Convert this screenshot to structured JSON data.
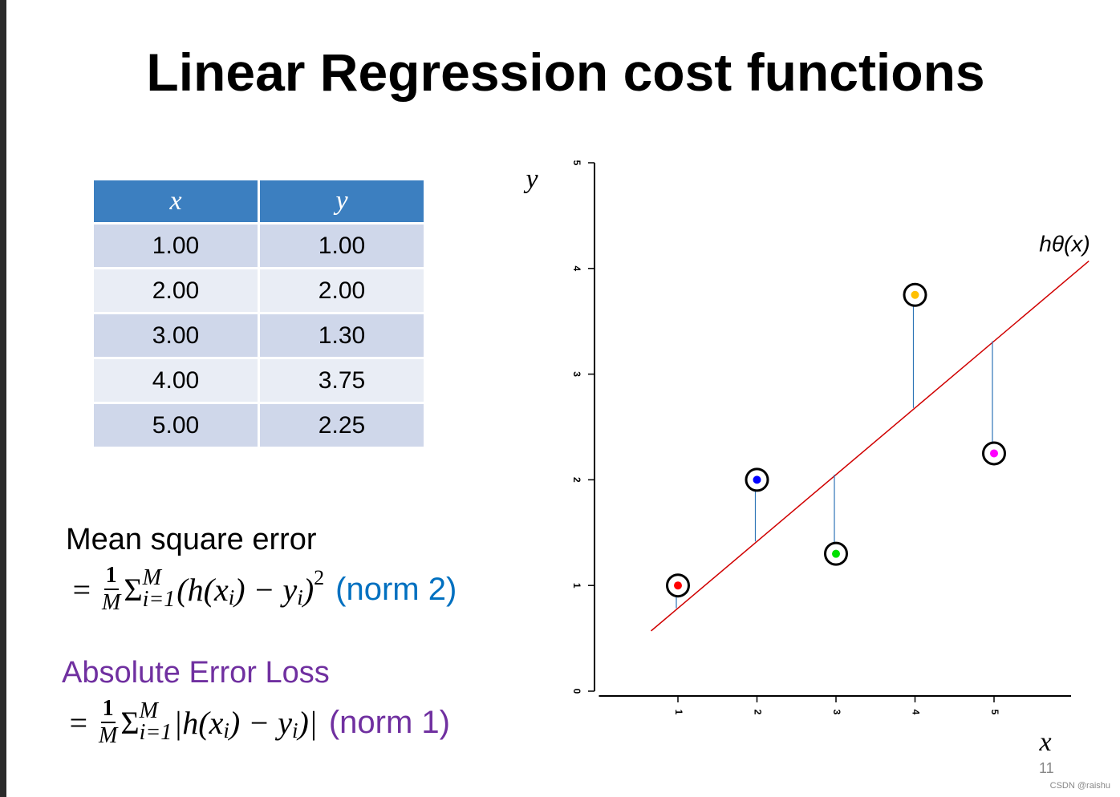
{
  "title": "Linear Regression cost functions",
  "table": {
    "header": [
      "x",
      "y"
    ],
    "rows": [
      [
        "1.00",
        "1.00"
      ],
      [
        "2.00",
        "2.00"
      ],
      [
        "3.00",
        "1.30"
      ],
      [
        "4.00",
        "3.75"
      ],
      [
        "5.00",
        "2.25"
      ]
    ]
  },
  "mse": {
    "heading": "Mean square error",
    "formula": {
      "equals": "=",
      "numerator": "1",
      "denominator": "M",
      "sum": "Σ",
      "upper": "M",
      "lower": "i=1",
      "body": [
        "(h(x",
        "i",
        ") − y",
        "i",
        ")"
      ],
      "power": "2",
      "note": "(norm 2)"
    }
  },
  "mae": {
    "heading": "Absolute Error Loss",
    "formula": {
      "equals": "=",
      "numerator": "1",
      "denominator": "M",
      "sum": "Σ",
      "upper": "M",
      "lower": "i=1",
      "body": [
        "|h(x",
        "i",
        ") − y",
        "i",
        ")|"
      ],
      "note": "(norm 1)"
    }
  },
  "chart_data": {
    "type": "scatter",
    "x_label": "x",
    "y_label": "y",
    "x": [
      1,
      2,
      3,
      4,
      5
    ],
    "values": [
      1,
      2,
      1.3,
      3.75,
      2.25
    ],
    "point_colors": [
      "#ff0000",
      "#0000ff",
      "#00e000",
      "#ffc000",
      "#ff00ff"
    ],
    "fit_line": {
      "name": "hθ(x)",
      "color": "#d00000",
      "x": [
        0.66,
        6.2
      ],
      "values": [
        0.57,
        4.07
      ]
    },
    "residual_color": "#2e75b6",
    "xlim": [
      0,
      6
    ],
    "ylim": [
      0,
      5
    ],
    "xticks": [
      1,
      2,
      3,
      4,
      5
    ],
    "yticks": [
      0,
      1,
      2,
      3,
      4,
      5
    ]
  },
  "page_number": "11",
  "watermark": "CSDN @raishu"
}
